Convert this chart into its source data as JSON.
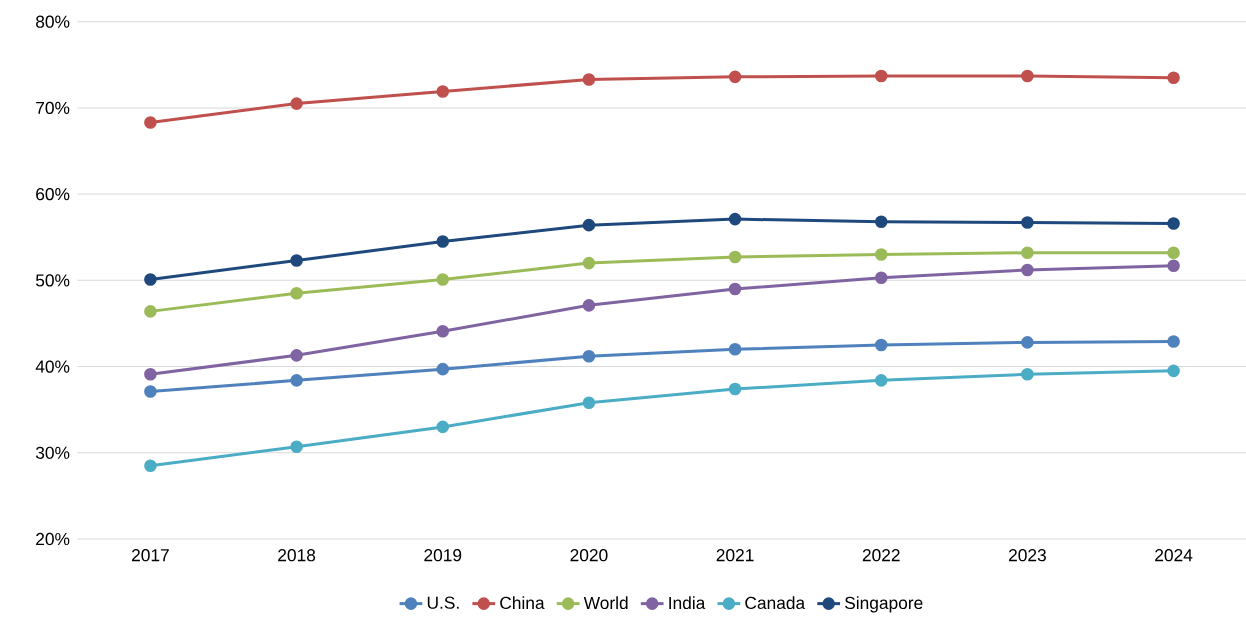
{
  "chart_data": {
    "type": "line",
    "categories": [
      "2017",
      "2018",
      "2019",
      "2020",
      "2021",
      "2022",
      "2023",
      "2024"
    ],
    "series": [
      {
        "name": "U.S.",
        "color": "#4f81bd",
        "values": [
          37.1,
          38.4,
          39.7,
          41.2,
          42.0,
          42.5,
          42.8,
          42.9
        ]
      },
      {
        "name": "China",
        "color": "#c0504d",
        "values": [
          68.3,
          70.5,
          71.9,
          73.3,
          73.6,
          73.7,
          73.7,
          73.5
        ]
      },
      {
        "name": "World",
        "color": "#9bbb59",
        "values": [
          46.4,
          48.5,
          50.1,
          52.0,
          52.7,
          53.0,
          53.2,
          53.2
        ]
      },
      {
        "name": "India",
        "color": "#8064a2",
        "values": [
          39.1,
          41.3,
          44.1,
          47.1,
          49.0,
          50.3,
          51.2,
          51.7
        ]
      },
      {
        "name": "Canada",
        "color": "#4bacc6",
        "values": [
          28.5,
          30.7,
          33.0,
          35.8,
          37.4,
          38.4,
          39.1,
          39.5
        ]
      },
      {
        "name": "Singapore",
        "color": "#1f497d",
        "values": [
          50.1,
          52.3,
          54.5,
          56.4,
          57.1,
          56.8,
          56.7,
          56.6
        ]
      }
    ],
    "ylim": [
      20,
      80
    ],
    "yticks": [
      {
        "value": 20,
        "label": "20%"
      },
      {
        "value": 30,
        "label": "30%"
      },
      {
        "value": 40,
        "label": "40%"
      },
      {
        "value": 50,
        "label": "50%"
      },
      {
        "value": 60,
        "label": "60%"
      },
      {
        "value": 70,
        "label": "70%"
      },
      {
        "value": 80,
        "label": "80%"
      }
    ],
    "grid": "y",
    "legend": "bottom",
    "marker": "circle",
    "line_style": "solid"
  }
}
